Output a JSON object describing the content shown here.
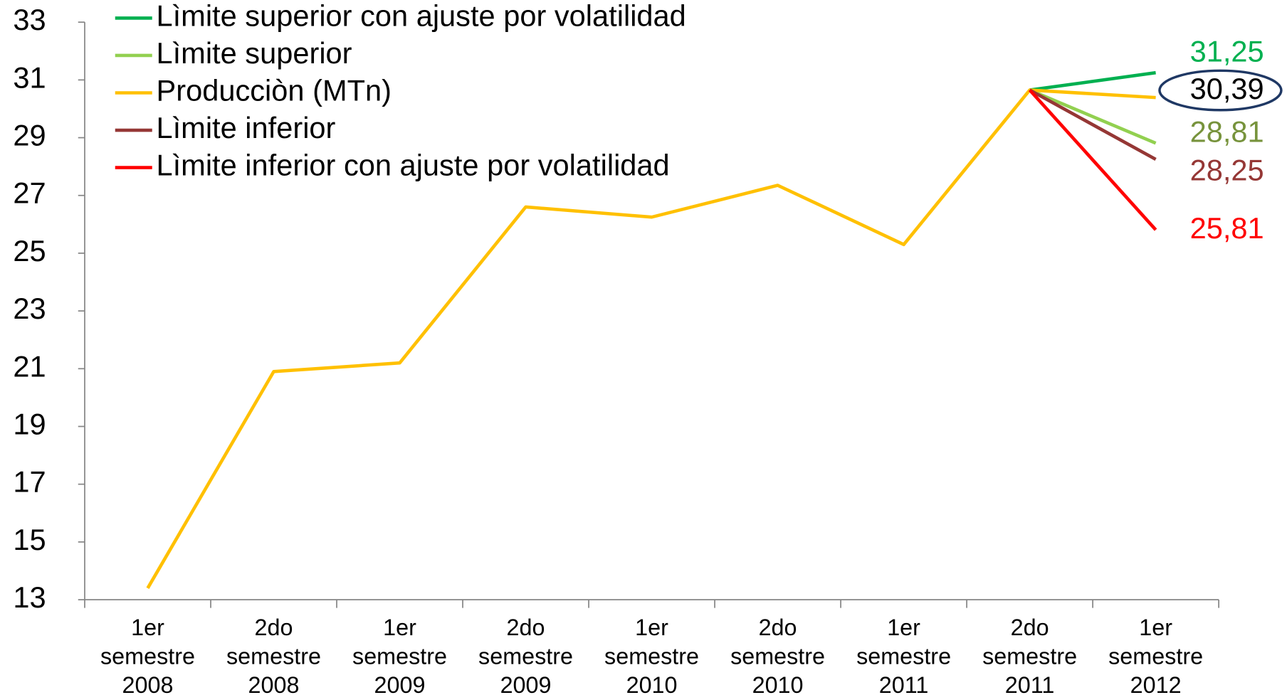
{
  "chart_data": {
    "type": "line",
    "categories": [
      [
        "1er",
        "semestre",
        "2008"
      ],
      [
        "2do",
        "semestre",
        "2008"
      ],
      [
        "1er",
        "semestre",
        "2009"
      ],
      [
        "2do",
        "semestre",
        "2009"
      ],
      [
        "1er",
        "semestre",
        "2010"
      ],
      [
        "2do",
        "semestre",
        "2010"
      ],
      [
        "1er",
        "semestre",
        "2011"
      ],
      [
        "2do",
        "semestre",
        "2011"
      ],
      [
        "1er",
        "semestre",
        "2012"
      ]
    ],
    "series": [
      {
        "name": "Lìmite superior con ajuste por volatilidad",
        "color": "#00b050",
        "label_color": "#00b050",
        "values": [
          null,
          null,
          null,
          null,
          null,
          null,
          null,
          30.65,
          31.25
        ],
        "value_labels": [
          null,
          null,
          null,
          null,
          null,
          null,
          null,
          null,
          "31,25"
        ]
      },
      {
        "name": "Lìmite superior",
        "color": "#92d050",
        "label_color": "#77933c",
        "values": [
          null,
          null,
          null,
          null,
          null,
          null,
          null,
          30.65,
          28.81
        ],
        "value_labels": [
          null,
          null,
          null,
          null,
          null,
          null,
          null,
          null,
          "28,81"
        ]
      },
      {
        "name": "Producciòn (MTn)",
        "color": "#ffc000",
        "label_color": "#000000",
        "values": [
          13.4,
          20.9,
          21.2,
          26.6,
          26.25,
          27.35,
          25.3,
          30.65,
          30.39
        ],
        "value_labels": [
          null,
          null,
          null,
          null,
          null,
          null,
          null,
          null,
          "30,39"
        ]
      },
      {
        "name": "Lìmite inferior",
        "color": "#953735",
        "label_color": "#953735",
        "values": [
          null,
          null,
          null,
          null,
          null,
          null,
          null,
          30.65,
          28.25
        ],
        "value_labels": [
          null,
          null,
          null,
          null,
          null,
          null,
          null,
          null,
          "28,25"
        ]
      },
      {
        "name": "Lìmite inferior con ajuste por volatilidad",
        "color": "#ff0000",
        "label_color": "#ff0000",
        "values": [
          null,
          null,
          null,
          null,
          null,
          null,
          null,
          30.65,
          25.81
        ],
        "value_labels": [
          null,
          null,
          null,
          null,
          null,
          null,
          null,
          null,
          "25,81"
        ]
      }
    ],
    "ylim": [
      13,
      33
    ],
    "yticks": [
      13,
      15,
      17,
      19,
      21,
      23,
      25,
      27,
      29,
      31,
      33
    ],
    "legend": "top-left"
  }
}
